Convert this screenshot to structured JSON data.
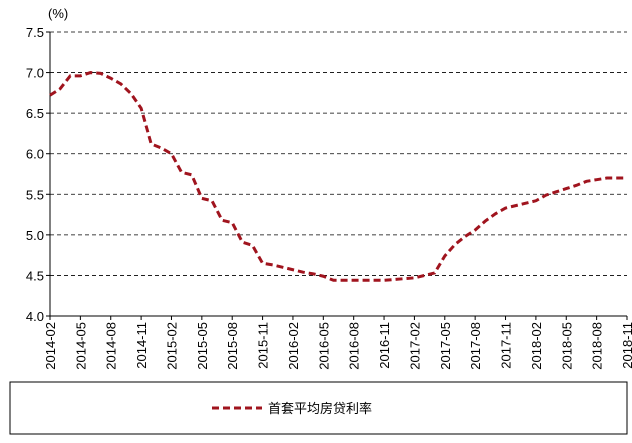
{
  "chart_data": {
    "type": "line",
    "y_label": "(%)",
    "categories": [
      "2014-02",
      null,
      null,
      "2014-05",
      null,
      null,
      "2014-08",
      null,
      null,
      "2014-11",
      null,
      null,
      "2015-02",
      null,
      null,
      "2015-05",
      null,
      null,
      "2015-08",
      null,
      null,
      "2015-11",
      null,
      null,
      "2016-02",
      null,
      null,
      "2016-05",
      null,
      null,
      "2016-08",
      null,
      null,
      "2016-11",
      null,
      null,
      "2017-02",
      null,
      null,
      "2017-05",
      null,
      null,
      "2017-08",
      null,
      null,
      "2017-11",
      null,
      null,
      "2018-02",
      null,
      null,
      "2018-05",
      null,
      null,
      "2018-08",
      null,
      null,
      "2018-11"
    ],
    "series": [
      {
        "name": "首套平均房贷利率",
        "color": "#a0141e",
        "values": [
          6.72,
          6.8,
          6.96,
          6.96,
          7.0,
          6.99,
          6.93,
          6.86,
          6.74,
          6.56,
          6.12,
          6.07,
          6.0,
          5.77,
          5.74,
          5.45,
          5.42,
          5.18,
          5.15,
          4.91,
          4.87,
          4.65,
          4.63,
          4.6,
          4.57,
          4.54,
          4.52,
          4.49,
          4.44,
          4.44,
          4.44,
          4.44,
          4.44,
          4.44,
          4.45,
          4.46,
          4.47,
          4.5,
          4.53,
          4.74,
          4.88,
          4.98,
          5.06,
          5.17,
          5.26,
          5.33,
          5.36,
          5.39,
          5.42,
          5.49,
          5.53,
          5.57,
          5.61,
          5.66,
          5.68,
          5.7,
          5.7,
          5.7
        ]
      }
    ],
    "ylim": [
      4.0,
      7.5
    ],
    "yticks": [
      {
        "value": 4.0,
        "label": "4.0"
      },
      {
        "value": 4.5,
        "label": "4.5"
      },
      {
        "value": 5.0,
        "label": "5.0"
      },
      {
        "value": 5.5,
        "label": "5.5"
      },
      {
        "value": 6.0,
        "label": "6.0"
      },
      {
        "value": 6.5,
        "label": "6.5"
      },
      {
        "value": 7.0,
        "label": "7.0"
      },
      {
        "value": 7.5,
        "label": "7.5"
      }
    ],
    "grid": true
  }
}
